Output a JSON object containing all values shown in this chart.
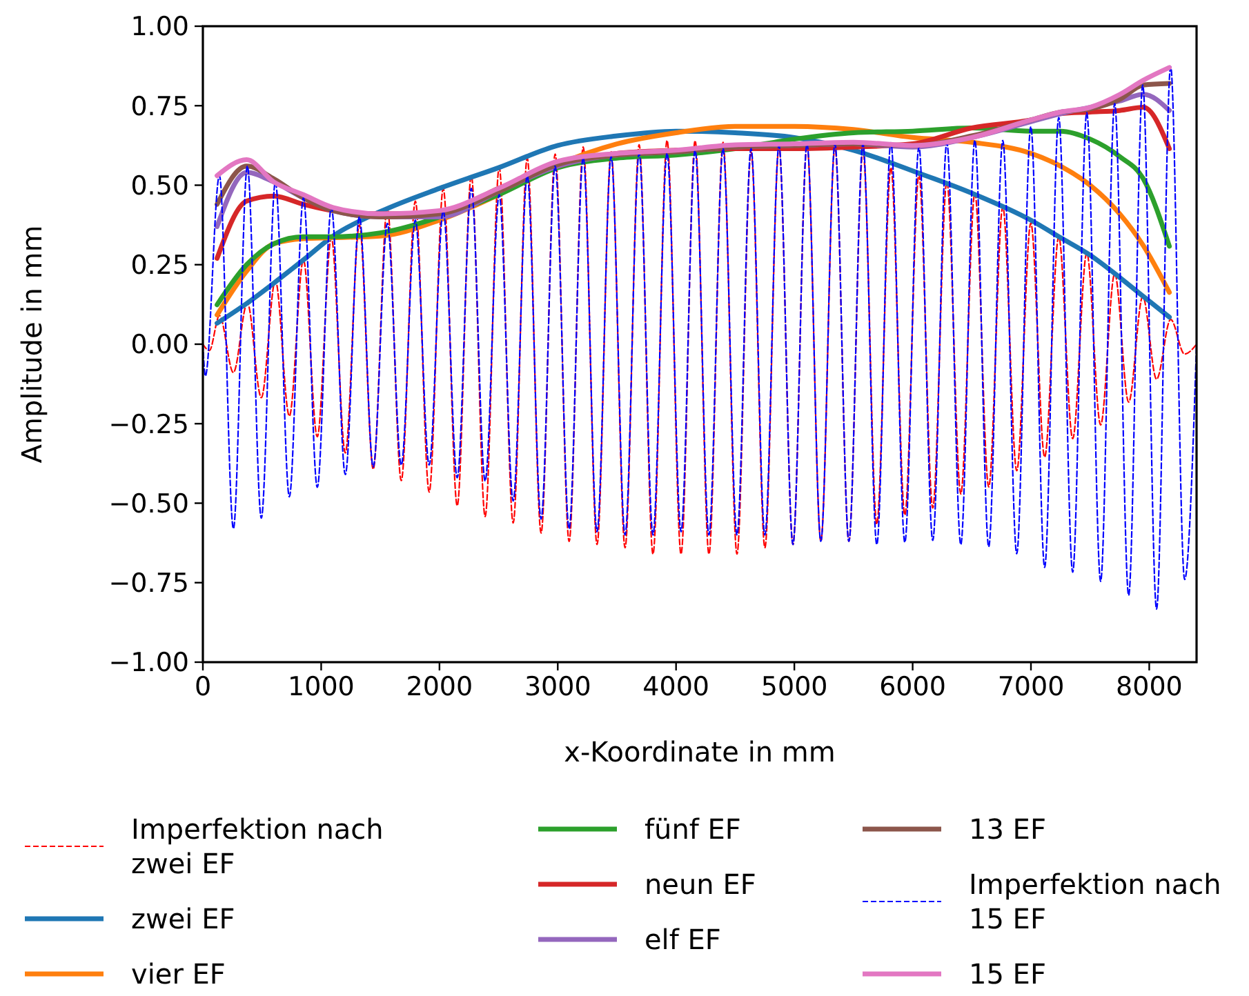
{
  "chart_data": {
    "type": "line",
    "xlabel": "x-Koordinate in mm",
    "ylabel": "Amplitude in mm",
    "xlim": [
      0,
      8400
    ],
    "xticks": [
      0,
      1000,
      2000,
      3000,
      4000,
      5000,
      6000,
      7000,
      8000
    ],
    "ylim": [
      -1,
      1
    ],
    "yticks": [
      {
        "value": -1,
        "label": "−1.00"
      },
      {
        "value": -0.75,
        "label": "−0.75"
      },
      {
        "value": -0.5,
        "label": "−0.50"
      },
      {
        "value": -0.25,
        "label": "−0.25"
      },
      {
        "value": 0,
        "label": "0.00"
      },
      {
        "value": 0.25,
        "label": "0.25"
      },
      {
        "value": 0.5,
        "label": "0.50"
      },
      {
        "value": 0.75,
        "label": "0.75"
      },
      {
        "value": 1,
        "label": "1.00"
      }
    ],
    "grid": false,
    "legend": "bottom",
    "marker": "none",
    "x": [
      120,
      370,
      600,
      850,
      1100,
      1500,
      2000,
      2500,
      3000,
      3500,
      4000,
      4500,
      5000,
      5500,
      6000,
      6500,
      7000,
      7250,
      7500,
      7750,
      7950,
      8170
    ],
    "series": [
      {
        "name": "Imperfektion nach zwei EF",
        "color": "#ff0000",
        "line_style": "dashed",
        "x": [
          0,
          55,
          140,
          258,
          376,
          494,
          613,
          731,
          850,
          967,
          1086,
          1204,
          1323,
          1440,
          1559,
          1677,
          1796,
          1913,
          2032,
          2150,
          2269,
          2386,
          2505,
          2623,
          2742,
          2859,
          2978,
          3096,
          3215,
          3332,
          3451,
          3569,
          3688,
          3805,
          3924,
          4042,
          4161,
          4278,
          4397,
          4515,
          4634,
          4751,
          4870,
          4988,
          5107,
          5224,
          5343,
          5461,
          5580,
          5697,
          5816,
          5934,
          6053,
          6170,
          6289,
          6407,
          6526,
          6643,
          6762,
          6880,
          6999,
          7116,
          7235,
          7353,
          7472,
          7589,
          7708,
          7826,
          7945,
          8062,
          8181,
          8299,
          8400
        ],
        "values": [
          0.0,
          -0.02,
          0.09,
          -0.089,
          0.13,
          -0.168,
          0.2,
          -0.226,
          0.265,
          -0.291,
          0.335,
          -0.342,
          0.375,
          -0.393,
          0.43,
          -0.429,
          0.45,
          -0.465,
          0.49,
          -0.508,
          0.53,
          -0.542,
          0.555,
          -0.562,
          0.585,
          -0.594,
          0.598,
          -0.62,
          0.62,
          -0.63,
          0.605,
          -0.64,
          0.627,
          -0.66,
          0.641,
          -0.66,
          0.64,
          -0.66,
          0.635,
          -0.66,
          0.605,
          -0.64,
          0.62,
          -0.63,
          0.627,
          -0.62,
          0.62,
          -0.62,
          0.61,
          -0.566,
          0.555,
          -0.537,
          0.533,
          -0.515,
          0.511,
          -0.471,
          0.475,
          -0.449,
          0.432,
          -0.398,
          0.381,
          -0.355,
          0.338,
          -0.297,
          0.287,
          -0.254,
          0.222,
          -0.182,
          0.15,
          -0.11,
          0.078,
          -0.031,
          0.0
        ]
      },
      {
        "name": "zwei EF",
        "color": "#1f77b4",
        "values": [
          0.066,
          0.128,
          0.192,
          0.265,
          0.34,
          0.417,
          0.49,
          0.555,
          0.625,
          0.655,
          0.67,
          0.665,
          0.65,
          0.61,
          0.545,
          0.475,
          0.39,
          0.335,
          0.28,
          0.21,
          0.15,
          0.085
        ]
      },
      {
        "name": "vier EF",
        "color": "#ff7f0e",
        "values": [
          0.092,
          0.23,
          0.316,
          0.332,
          0.335,
          0.34,
          0.39,
          0.47,
          0.565,
          0.63,
          0.665,
          0.685,
          0.685,
          0.675,
          0.65,
          0.635,
          0.6,
          0.56,
          0.5,
          0.41,
          0.31,
          0.163
        ]
      },
      {
        "name": "fünf EF",
        "color": "#2ca02c",
        "values": [
          0.124,
          0.25,
          0.316,
          0.338,
          0.338,
          0.35,
          0.4,
          0.47,
          0.555,
          0.585,
          0.595,
          0.615,
          0.645,
          0.665,
          0.67,
          0.68,
          0.67,
          0.67,
          0.645,
          0.59,
          0.52,
          0.308
        ]
      },
      {
        "name": "neun EF",
        "color": "#d62728",
        "values": [
          0.27,
          0.45,
          0.466,
          0.44,
          0.42,
          0.41,
          0.41,
          0.49,
          0.56,
          0.6,
          0.61,
          0.615,
          0.615,
          0.62,
          0.63,
          0.68,
          0.705,
          0.725,
          0.73,
          0.735,
          0.745,
          0.615
        ]
      },
      {
        "name": "elf EF",
        "color": "#9467bd",
        "values": [
          0.37,
          0.54,
          0.51,
          0.46,
          0.42,
          0.4,
          0.4,
          0.48,
          0.56,
          0.595,
          0.605,
          0.62,
          0.625,
          0.63,
          0.62,
          0.65,
          0.7,
          0.725,
          0.745,
          0.765,
          0.786,
          0.735
        ]
      },
      {
        "name": "13 EF",
        "color": "#8c564b",
        "values": [
          0.44,
          0.56,
          0.52,
          0.46,
          0.42,
          0.4,
          0.41,
          0.48,
          0.565,
          0.595,
          0.605,
          0.62,
          0.625,
          0.63,
          0.625,
          0.655,
          0.705,
          0.73,
          0.74,
          0.77,
          0.815,
          0.82
        ]
      },
      {
        "name": "Imperfektion nach 15 EF",
        "color": "#0000ff",
        "line_style": "dashed",
        "x": [
          0,
          21,
          140,
          258,
          376,
          494,
          613,
          731,
          850,
          967,
          1086,
          1204,
          1323,
          1440,
          1559,
          1677,
          1796,
          1913,
          2032,
          2150,
          2269,
          2386,
          2505,
          2623,
          2742,
          2859,
          2978,
          3096,
          3215,
          3332,
          3451,
          3569,
          3688,
          3805,
          3924,
          4042,
          4161,
          4278,
          4397,
          4515,
          4634,
          4751,
          4870,
          4988,
          5107,
          5224,
          5343,
          5461,
          5580,
          5697,
          5816,
          5934,
          6053,
          6170,
          6289,
          6407,
          6526,
          6643,
          6762,
          6880,
          6999,
          7116,
          7235,
          7353,
          7472,
          7589,
          7708,
          7826,
          7945,
          8062,
          8181,
          8299,
          8400
        ],
        "values": [
          0.0,
          -0.1,
          0.53,
          -0.58,
          0.56,
          -0.547,
          0.51,
          -0.48,
          0.46,
          -0.45,
          0.43,
          -0.41,
          0.4,
          -0.386,
          0.38,
          -0.38,
          0.39,
          -0.38,
          0.42,
          -0.42,
          0.49,
          -0.43,
          0.47,
          -0.493,
          0.53,
          -0.55,
          0.56,
          -0.58,
          0.587,
          -0.59,
          0.59,
          -0.6,
          0.6,
          -0.6,
          0.6,
          -0.59,
          0.61,
          -0.6,
          0.615,
          -0.6,
          0.615,
          -0.6,
          0.625,
          -0.63,
          0.63,
          -0.62,
          0.63,
          -0.62,
          0.63,
          -0.63,
          0.634,
          -0.623,
          0.62,
          -0.617,
          0.634,
          -0.63,
          0.641,
          -0.637,
          0.641,
          -0.659,
          0.684,
          -0.702,
          0.713,
          -0.717,
          0.728,
          -0.746,
          0.757,
          -0.79,
          0.815,
          -0.833,
          0.873,
          -0.74,
          0.0
        ]
      },
      {
        "name": "15 EF",
        "color": "#e377c2",
        "values": [
          0.53,
          0.58,
          0.51,
          0.47,
          0.43,
          0.41,
          0.42,
          0.49,
          0.575,
          0.6,
          0.61,
          0.627,
          0.63,
          0.635,
          0.625,
          0.65,
          0.705,
          0.73,
          0.745,
          0.785,
          0.83,
          0.87
        ]
      }
    ]
  }
}
